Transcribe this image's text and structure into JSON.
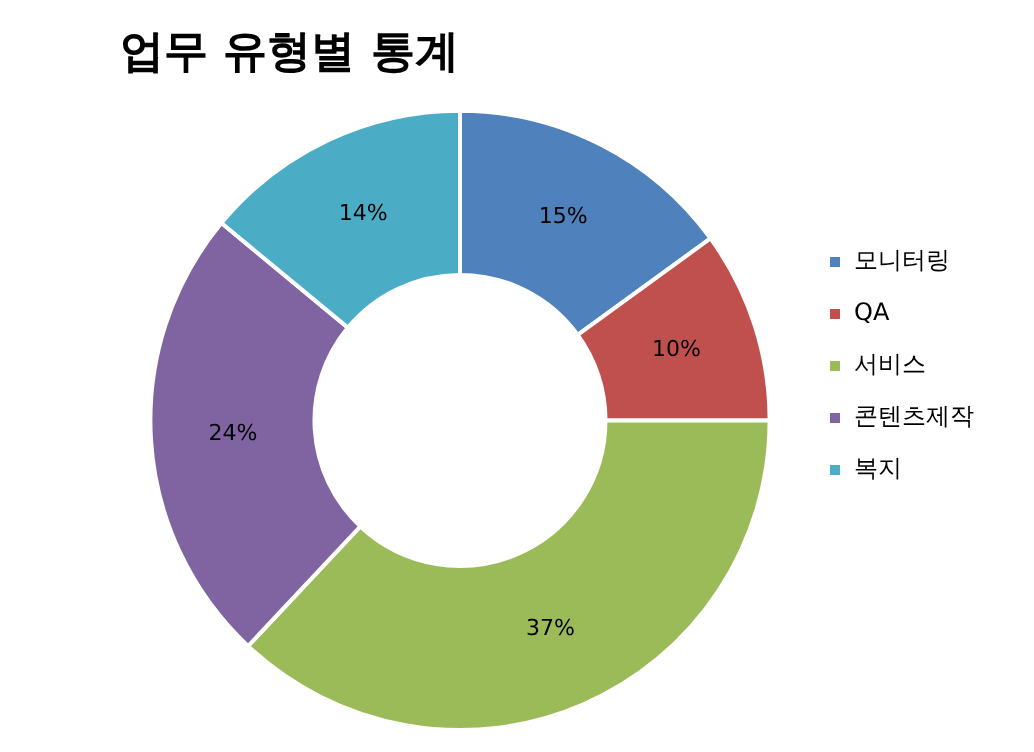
{
  "chart_data": {
    "type": "donut",
    "title": "업무 유형별 통계",
    "categories": [
      "모니터링",
      "QA",
      "서비스",
      "콘텐츠제작",
      "복지"
    ],
    "values": [
      15,
      10,
      37,
      24,
      14
    ],
    "colors": [
      "#4f81bd",
      "#c0504d",
      "#9bbb59",
      "#8064a2",
      "#4bacc6"
    ],
    "value_labels": [
      "15%",
      "10%",
      "37%",
      "24%",
      "14%"
    ],
    "legend": "right"
  }
}
